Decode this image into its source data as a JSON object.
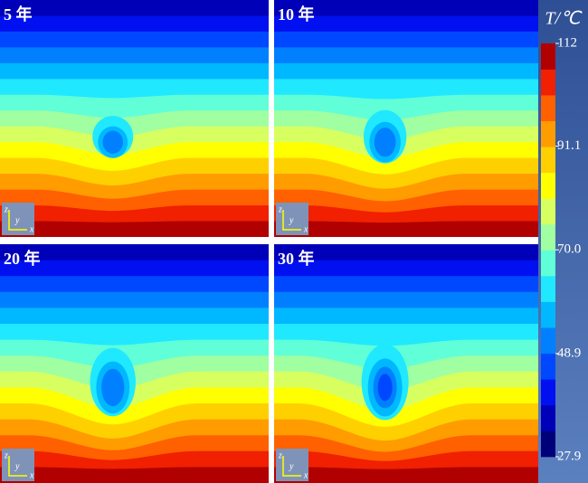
{
  "chart_data": {
    "type": "contour",
    "panels": [
      "5 年",
      "10 年",
      "20 年",
      "30 年"
    ],
    "triad": [
      "z",
      "y",
      "x"
    ],
    "colorbar_title": "T/℃",
    "ylim": [
      27.9,
      112
    ],
    "yticks": [
      27.9,
      48.9,
      {
        "value": 70,
        "label": "70.0"
      },
      91.1,
      112
    ],
    "colormap": [
      "#00007a",
      "#0000b8",
      "#0010f0",
      "#0048ff",
      "#0080ff",
      "#00b8ff",
      "#20e8ff",
      "#60ffd8",
      "#a0ffa0",
      "#d8ff60",
      "#ffff00",
      "#ffd000",
      "#ff9c00",
      "#ff6000",
      "#f02000",
      "#b00000"
    ]
  }
}
